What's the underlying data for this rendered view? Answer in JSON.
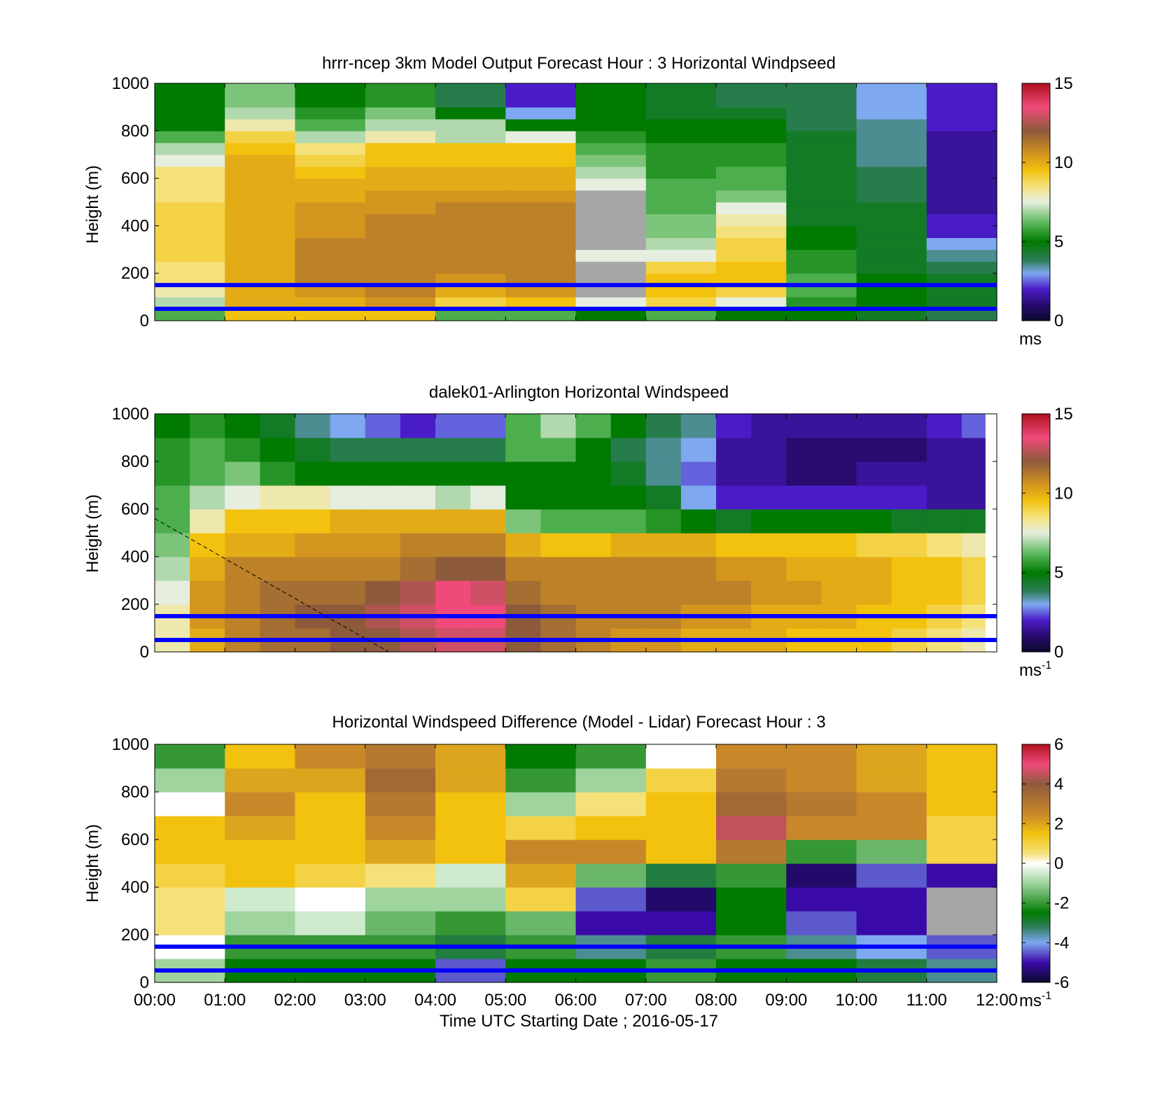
{
  "figure": {
    "xlabel": "Time UTC  Starting Date ; 2016-05-17",
    "time_ticks": [
      "00:00",
      "01:00",
      "02:00",
      "03:00",
      "04:00",
      "05:00",
      "06:00",
      "07:00",
      "08:00",
      "09:00",
      "10:00",
      "11:00",
      "12:00"
    ]
  },
  "chart_data": [
    {
      "type": "heatmap",
      "title": "hrrr-ncep 3km Model Output   Forecast Hour : 3 Horizontal Windpseed",
      "ylabel": "Height (m)",
      "yticks": [
        "0",
        "200",
        "400",
        "600",
        "800",
        "1000"
      ],
      "ylim": [
        0,
        1000
      ],
      "xlim": [
        "00:00",
        "12:00"
      ],
      "colorbar": {
        "min": 0,
        "max": 15,
        "ticks": [
          "0",
          "5",
          "10",
          "15"
        ],
        "unit_label": "ms",
        "unit_sup": "",
        "palette": "speed"
      },
      "reference_lines_m": [
        50,
        150
      ],
      "heights_m": [
        25,
        75,
        125,
        175,
        225,
        275,
        325,
        375,
        425,
        475,
        525,
        575,
        625,
        675,
        725,
        775,
        825,
        875,
        925,
        975
      ],
      "columns": [
        {
          "start": "00:00",
          "end": "01:00",
          "speed": [
            6,
            7,
            8,
            8.5,
            8.5,
            9,
            9,
            9,
            9,
            9,
            8.5,
            8.5,
            8.5,
            7.5,
            7,
            6,
            5,
            5,
            5,
            5
          ]
        },
        {
          "start": "01:00",
          "end": "02:00",
          "speed": [
            9.5,
            10,
            10,
            10,
            10,
            10,
            10,
            10,
            10,
            10,
            10,
            10,
            10,
            10,
            9.5,
            9,
            8,
            7,
            6.5,
            6.5
          ]
        },
        {
          "start": "02:00",
          "end": "03:00",
          "speed": [
            9.5,
            10,
            10.5,
            11,
            11,
            11,
            11,
            10.5,
            10.5,
            10.5,
            10,
            10,
            9.5,
            9,
            8.5,
            7,
            6,
            5.5,
            5,
            5
          ]
        },
        {
          "start": "03:00",
          "end": "04:00",
          "speed": [
            9.5,
            10.5,
            11,
            11,
            11,
            11,
            11,
            11,
            11,
            10.5,
            10.5,
            10,
            10,
            9.5,
            9.5,
            8,
            7,
            6.5,
            5.5,
            5.5
          ]
        },
        {
          "start": "04:00",
          "end": "05:00",
          "speed": [
            6,
            9,
            10,
            10.5,
            11,
            11,
            11,
            11,
            11,
            11,
            10.5,
            10,
            10,
            9.5,
            9.5,
            7,
            7,
            5,
            4,
            4
          ]
        },
        {
          "start": "05:00",
          "end": "06:00",
          "speed": [
            6,
            9.5,
            10.5,
            11,
            11,
            11,
            11,
            11,
            11,
            11,
            10.5,
            10,
            10,
            9.5,
            9.5,
            7.5,
            5,
            3,
            2,
            2
          ]
        },
        {
          "start": "06:00",
          "end": "07:00",
          "speed": [
            5,
            7.5,
            -1,
            -1,
            -1,
            7.5,
            -1,
            -1,
            -1,
            -1,
            -1,
            7.5,
            7,
            6.5,
            6,
            5.5,
            5,
            5,
            5,
            5
          ]
        },
        {
          "start": "07:00",
          "end": "08:00",
          "speed": [
            6,
            9,
            9.5,
            9.5,
            9,
            7.5,
            7,
            6.5,
            6.5,
            6,
            6,
            6,
            5.5,
            5.5,
            5.5,
            5,
            5,
            4.5,
            4.5,
            4.5
          ]
        },
        {
          "start": "08:00",
          "end": "09:00",
          "speed": [
            5,
            7.5,
            9,
            9.5,
            9.5,
            9,
            9,
            8.5,
            8,
            7.5,
            6.5,
            6,
            6,
            5.5,
            5.5,
            5,
            5,
            4.5,
            4,
            4
          ]
        },
        {
          "start": "09:00",
          "end": "10:00",
          "speed": [
            5,
            5.5,
            6,
            6,
            5.5,
            5.5,
            5,
            5,
            4.5,
            4.5,
            4.5,
            4.5,
            4.5,
            4.5,
            4.5,
            4.5,
            4,
            4,
            4,
            4
          ]
        },
        {
          "start": "10:00",
          "end": "11:00",
          "speed": [
            4.5,
            5,
            5,
            5,
            4.5,
            4.5,
            4.5,
            4.5,
            4.5,
            4.5,
            4,
            4,
            4,
            3.5,
            3.5,
            3.5,
            3.5,
            3,
            3,
            3
          ]
        },
        {
          "start": "11:00",
          "end": "12:00",
          "speed": [
            4,
            4.5,
            4.5,
            4.5,
            4,
            3.5,
            3,
            2,
            2,
            1.5,
            1.5,
            1.5,
            1.5,
            1.5,
            1.5,
            1.5,
            2,
            2,
            2,
            2
          ]
        }
      ]
    },
    {
      "type": "heatmap",
      "title": "dalek01-Arlington  Horizontal Windspeed",
      "ylabel": "Height (m)",
      "yticks": [
        "0",
        "200",
        "400",
        "600",
        "800",
        "1000"
      ],
      "ylim": [
        0,
        1000
      ],
      "xlim": [
        "00:00",
        "12:00"
      ],
      "colorbar": {
        "min": 0,
        "max": 15,
        "ticks": [
          "0",
          "5",
          "10",
          "15"
        ],
        "unit_label": "ms",
        "unit_sup": "-1",
        "palette": "speed"
      },
      "reference_lines_m": [
        50,
        150
      ],
      "dashed_line": {
        "from": {
          "time": "00:00",
          "height_m": 560
        },
        "to": {
          "time": "03:20",
          "height_m": 0
        }
      },
      "heights_m": [
        50,
        150,
        250,
        350,
        450,
        550,
        650,
        750,
        850,
        950
      ],
      "columns": [
        {
          "start": "00:00",
          "end": "00:30",
          "speed": [
            8,
            8,
            7.5,
            7,
            6.5,
            6,
            6,
            5.5,
            5.5,
            5
          ]
        },
        {
          "start": "00:30",
          "end": "01:00",
          "speed": [
            10,
            10.5,
            10.5,
            10,
            9.5,
            8,
            7,
            6,
            6,
            5.5
          ]
        },
        {
          "start": "01:00",
          "end": "01:30",
          "speed": [
            11,
            11,
            11,
            11,
            10,
            9.5,
            7.5,
            6.5,
            5.5,
            5
          ]
        },
        {
          "start": "01:30",
          "end": "02:00",
          "speed": [
            11.5,
            11.5,
            11.5,
            11,
            10,
            9.5,
            8,
            5.5,
            5,
            4.5
          ]
        },
        {
          "start": "02:00",
          "end": "02:30",
          "speed": [
            11.5,
            12,
            11.5,
            11,
            10.5,
            9.5,
            8,
            5,
            4.5,
            3.5
          ]
        },
        {
          "start": "02:30",
          "end": "03:00",
          "speed": [
            12,
            12,
            11.5,
            11,
            10.5,
            10,
            7.5,
            5,
            4,
            3
          ]
        },
        {
          "start": "03:00",
          "end": "03:30",
          "speed": [
            12,
            12.5,
            12,
            11,
            10.5,
            10,
            7.5,
            5,
            4,
            2.5
          ]
        },
        {
          "start": "03:30",
          "end": "04:00",
          "speed": [
            12.5,
            13,
            12.5,
            11.5,
            11,
            10,
            7.5,
            5,
            4,
            2
          ]
        },
        {
          "start": "04:00",
          "end": "04:30",
          "speed": [
            13,
            13.5,
            13.5,
            12,
            11,
            10,
            7,
            5,
            4,
            2.5
          ]
        },
        {
          "start": "04:30",
          "end": "05:00",
          "speed": [
            13,
            13.5,
            13,
            12,
            11,
            10,
            7.5,
            5,
            4,
            2.5
          ]
        },
        {
          "start": "05:00",
          "end": "05:30",
          "speed": [
            12,
            12,
            11.5,
            11,
            10,
            6.5,
            5,
            5,
            6,
            6
          ]
        },
        {
          "start": "05:30",
          "end": "06:00",
          "speed": [
            11.5,
            11.5,
            11,
            11,
            9.5,
            6,
            5,
            5,
            6,
            7
          ]
        },
        {
          "start": "06:00",
          "end": "06:30",
          "speed": [
            11,
            11,
            11,
            11,
            9.5,
            6,
            5,
            5,
            5,
            6
          ]
        },
        {
          "start": "06:30",
          "end": "07:00",
          "speed": [
            10.5,
            11,
            11,
            11,
            10,
            6,
            5,
            4.5,
            4,
            5
          ]
        },
        {
          "start": "07:00",
          "end": "07:30",
          "speed": [
            10.5,
            11,
            11,
            11,
            10,
            5.5,
            4.5,
            3.5,
            3.5,
            4
          ]
        },
        {
          "start": "07:30",
          "end": "08:00",
          "speed": [
            10,
            10.5,
            11,
            11,
            10,
            5,
            3,
            2.5,
            3,
            3.5
          ]
        },
        {
          "start": "08:00",
          "end": "08:30",
          "speed": [
            10,
            10.5,
            11,
            10.5,
            9.5,
            4.5,
            2,
            1.5,
            1.5,
            2
          ]
        },
        {
          "start": "08:30",
          "end": "09:00",
          "speed": [
            10,
            10,
            10.5,
            10.5,
            9.5,
            5,
            2,
            1.5,
            1.5,
            1.5
          ]
        },
        {
          "start": "09:00",
          "end": "09:30",
          "speed": [
            9.5,
            10,
            10.5,
            10,
            9.5,
            5,
            2,
            1,
            1,
            1.5
          ]
        },
        {
          "start": "09:30",
          "end": "10:00",
          "speed": [
            9.5,
            10,
            10,
            10,
            9.5,
            5,
            2,
            1,
            1,
            1.5
          ]
        },
        {
          "start": "10:00",
          "end": "10:30",
          "speed": [
            9.5,
            9.5,
            10,
            10,
            9,
            5,
            2,
            1.5,
            1,
            1.5
          ]
        },
        {
          "start": "10:30",
          "end": "11:00",
          "speed": [
            9,
            9.5,
            9.5,
            9.5,
            9,
            4.5,
            2,
            1.5,
            1,
            1.5
          ]
        },
        {
          "start": "11:00",
          "end": "11:30",
          "speed": [
            8.5,
            9,
            9.5,
            9.5,
            8.5,
            4.5,
            1.5,
            1.5,
            1.5,
            2
          ]
        },
        {
          "start": "11:30",
          "end": "11:50",
          "speed": [
            8,
            8.5,
            9,
            9,
            8,
            4.5,
            1.5,
            1.5,
            1.5,
            2.5
          ]
        }
      ]
    },
    {
      "type": "heatmap",
      "title": "Horizontal Windspeed Difference (Model - Lidar) Forecast Hour : 3",
      "ylabel": "Height (m)",
      "yticks": [
        "0",
        "200",
        "400",
        "600",
        "800",
        "1000"
      ],
      "ylim": [
        0,
        1000
      ],
      "xlim": [
        "00:00",
        "12:00"
      ],
      "colorbar": {
        "min": -6,
        "max": 6,
        "ticks": [
          "-6",
          "-4",
          "-2",
          "0",
          "2",
          "4",
          "6"
        ],
        "unit_label": "ms",
        "unit_sup": "-1",
        "palette": "diff"
      },
      "reference_lines_m": [
        50,
        150
      ],
      "heights_m": [
        50,
        150,
        250,
        350,
        450,
        550,
        650,
        750,
        850,
        950
      ],
      "columns": [
        {
          "start": "00:00",
          "end": "01:00",
          "speed": [
            -1,
            0,
            0.5,
            0.5,
            1,
            1.5,
            1.5,
            0,
            -1,
            -2
          ]
        },
        {
          "start": "01:00",
          "end": "02:00",
          "speed": [
            -2.5,
            -2,
            -1,
            -0.5,
            1.5,
            1.5,
            2,
            2.5,
            2,
            1.5
          ]
        },
        {
          "start": "02:00",
          "end": "03:00",
          "speed": [
            -2.5,
            -2,
            -0.5,
            0,
            1,
            1.5,
            1.5,
            1.5,
            2,
            2.5
          ]
        },
        {
          "start": "03:00",
          "end": "04:00",
          "speed": [
            -2.5,
            -2,
            -1.5,
            -1,
            0.5,
            2,
            2.5,
            3,
            3.5,
            3
          ]
        },
        {
          "start": "04:00",
          "end": "05:00",
          "speed": [
            -4.5,
            -3,
            -2,
            -1,
            -0.5,
            1.5,
            1.5,
            1.5,
            2,
            2
          ]
        },
        {
          "start": "05:00",
          "end": "06:00",
          "speed": [
            -2.5,
            -2,
            -1.5,
            1,
            2,
            2.5,
            1,
            -1,
            -2,
            -2.5
          ]
        },
        {
          "start": "06:00",
          "end": "07:00",
          "speed": [
            -2.5,
            -3.5,
            -5,
            -4.5,
            -1.5,
            2.5,
            1.5,
            0.5,
            -1,
            -2
          ]
        },
        {
          "start": "07:00",
          "end": "08:00",
          "speed": [
            -2,
            -3,
            -5,
            -5.5,
            -3,
            1.5,
            1.5,
            1.5,
            1,
            0
          ]
        },
        {
          "start": "08:00",
          "end": "09:00",
          "speed": [
            -2.5,
            -2,
            -2.5,
            -2.5,
            -2,
            3,
            4.5,
            3.5,
            3,
            2.5
          ]
        },
        {
          "start": "09:00",
          "end": "10:00",
          "speed": [
            -2.5,
            -3.5,
            -4.5,
            -5,
            -5.5,
            -2,
            2.5,
            3,
            2.5,
            2.5
          ]
        },
        {
          "start": "10:00",
          "end": "11:00",
          "speed": [
            -3,
            -4,
            -5,
            -5,
            -4.5,
            -1.5,
            2.5,
            2.5,
            2,
            2
          ]
        },
        {
          "start": "11:00",
          "end": "12:00",
          "speed": [
            -3.5,
            -4.5,
            -9,
            -9,
            -5,
            1,
            1,
            1.5,
            1.5,
            1.5
          ]
        }
      ]
    }
  ]
}
